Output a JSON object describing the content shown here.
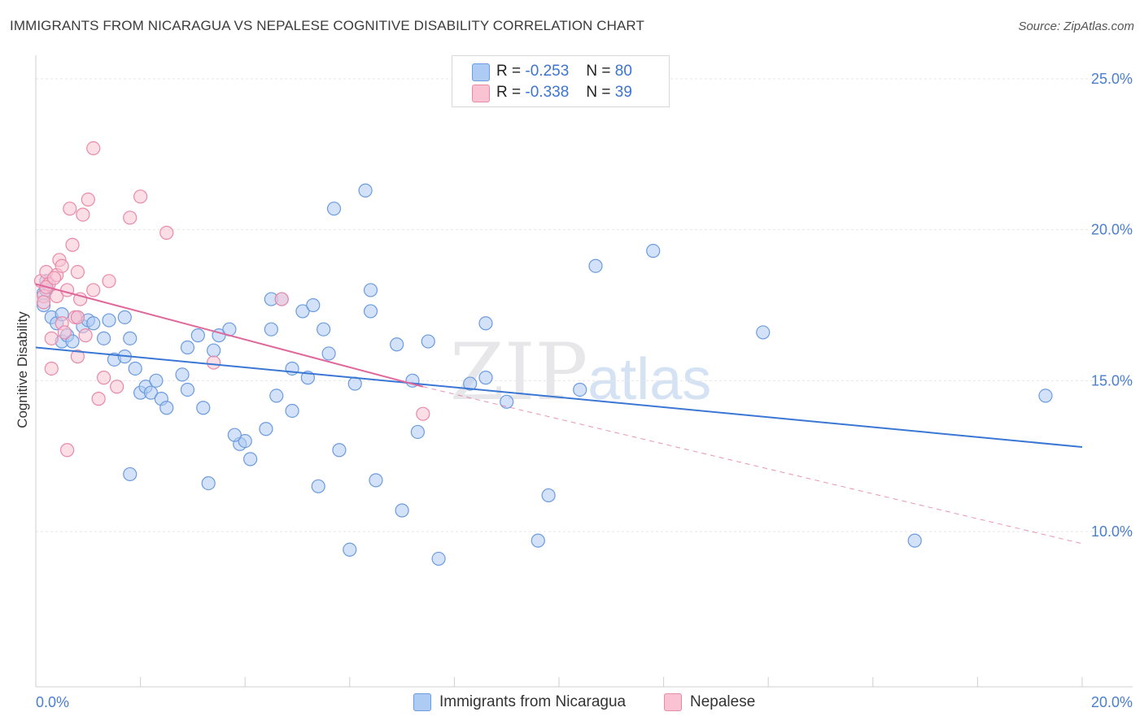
{
  "chart_data": {
    "type": "scatter",
    "title": "IMMIGRANTS FROM NICARAGUA VS NEPALESE COGNITIVE DISABILITY CORRELATION CHART",
    "source": "Source: ZipAtlas.com",
    "xlabel": "",
    "ylabel": "Cognitive Disability",
    "xlim": [
      0,
      20
    ],
    "ylim": [
      5,
      26
    ],
    "y_ticks": [
      {
        "value": 10,
        "label": "10.0%"
      },
      {
        "value": 15,
        "label": "15.0%"
      },
      {
        "value": 20,
        "label": "20.0%"
      },
      {
        "value": 25,
        "label": "25.0%"
      }
    ],
    "x_tick_labels": {
      "min": "0.0%",
      "max": "20.0%"
    },
    "watermark": {
      "main": "ZIP",
      "small": "atlas"
    },
    "legend": {
      "entries": [
        {
          "r_label": "R =",
          "r": "-0.253",
          "n_label": "N =",
          "n": "80",
          "color": "#aecbf3",
          "border": "#6b9be0"
        },
        {
          "r_label": "R =",
          "r": "-0.338",
          "n_label": "N =",
          "n": "39",
          "color": "#f9c3d4",
          "border": "#e98aa8"
        }
      ]
    },
    "series": [
      {
        "name": "Immigrants from Nicaragua",
        "color": "#aecbf3",
        "stroke": "#6b9be0",
        "trend": {
          "x0": 0,
          "y0": 16.1,
          "x1": 20,
          "y1": 12.8,
          "color": "#3a77d4"
        },
        "points": [
          [
            0.15,
            17.5
          ],
          [
            0.2,
            18.3
          ],
          [
            0.3,
            17.1
          ],
          [
            0.4,
            16.9
          ],
          [
            0.5,
            17.2
          ],
          [
            0.5,
            16.3
          ],
          [
            0.6,
            16.5
          ],
          [
            0.7,
            16.3
          ],
          [
            0.8,
            17.1
          ],
          [
            0.9,
            16.8
          ],
          [
            1.0,
            17.0
          ],
          [
            1.1,
            16.9
          ],
          [
            1.3,
            16.4
          ],
          [
            1.4,
            17.0
          ],
          [
            1.7,
            17.1
          ],
          [
            1.5,
            15.7
          ],
          [
            1.7,
            15.8
          ],
          [
            1.8,
            16.4
          ],
          [
            2.0,
            14.6
          ],
          [
            1.9,
            15.4
          ],
          [
            2.1,
            14.8
          ],
          [
            2.2,
            14.6
          ],
          [
            2.3,
            15.0
          ],
          [
            2.4,
            14.4
          ],
          [
            2.5,
            14.1
          ],
          [
            2.8,
            15.2
          ],
          [
            2.9,
            14.7
          ],
          [
            3.2,
            14.1
          ],
          [
            3.1,
            16.5
          ],
          [
            3.5,
            16.5
          ],
          [
            3.7,
            16.7
          ],
          [
            3.4,
            16.0
          ],
          [
            2.9,
            16.1
          ],
          [
            3.9,
            12.9
          ],
          [
            4.0,
            13.0
          ],
          [
            3.8,
            13.2
          ],
          [
            4.1,
            12.4
          ],
          [
            4.4,
            13.4
          ],
          [
            4.5,
            16.7
          ],
          [
            4.5,
            17.7
          ],
          [
            4.6,
            14.5
          ],
          [
            4.7,
            17.7
          ],
          [
            4.9,
            15.4
          ],
          [
            4.9,
            14.0
          ],
          [
            5.1,
            17.3
          ],
          [
            5.2,
            15.1
          ],
          [
            5.3,
            17.5
          ],
          [
            5.5,
            16.7
          ],
          [
            5.6,
            15.9
          ],
          [
            5.7,
            20.7
          ],
          [
            5.8,
            12.7
          ],
          [
            5.4,
            11.5
          ],
          [
            6.1,
            14.9
          ],
          [
            6.4,
            18.0
          ],
          [
            6.3,
            21.3
          ],
          [
            6.5,
            11.7
          ],
          [
            6.4,
            17.3
          ],
          [
            6.9,
            16.2
          ],
          [
            7.2,
            15.0
          ],
          [
            7.3,
            13.3
          ],
          [
            7.0,
            10.7
          ],
          [
            7.5,
            16.3
          ],
          [
            7.7,
            9.1
          ],
          [
            8.3,
            14.9
          ],
          [
            8.6,
            15.1
          ],
          [
            8.6,
            16.9
          ],
          [
            9.0,
            14.3
          ],
          [
            9.6,
            9.7
          ],
          [
            9.8,
            11.2
          ],
          [
            10.4,
            14.7
          ],
          [
            10.7,
            18.8
          ],
          [
            11.8,
            19.3
          ],
          [
            1.8,
            11.9
          ],
          [
            3.3,
            11.6
          ],
          [
            6.0,
            9.4
          ],
          [
            13.9,
            16.6
          ],
          [
            16.8,
            9.7
          ],
          [
            19.3,
            14.5
          ],
          [
            0.15,
            17.9
          ],
          [
            0.2,
            18.0
          ]
        ]
      },
      {
        "name": "Nepalese",
        "color": "#f9c3d4",
        "stroke": "#e98aa8",
        "trend": {
          "x0": 0,
          "y0": 18.2,
          "x1": 7.4,
          "y1": 14.8,
          "color": "#e0679a"
        },
        "trend_ext": {
          "x0": 7.4,
          "y0": 14.8,
          "x1": 20,
          "y1": 9.6
        },
        "points": [
          [
            0.1,
            18.3
          ],
          [
            0.15,
            17.8
          ],
          [
            0.2,
            18.6
          ],
          [
            0.25,
            18.2
          ],
          [
            0.3,
            16.4
          ],
          [
            0.3,
            15.4
          ],
          [
            0.4,
            18.5
          ],
          [
            0.4,
            17.8
          ],
          [
            0.45,
            19.0
          ],
          [
            0.5,
            18.8
          ],
          [
            0.5,
            16.9
          ],
          [
            0.6,
            18.0
          ],
          [
            0.6,
            12.7
          ],
          [
            0.65,
            20.7
          ],
          [
            0.7,
            19.5
          ],
          [
            0.75,
            17.1
          ],
          [
            0.8,
            18.6
          ],
          [
            0.8,
            15.8
          ],
          [
            0.85,
            17.7
          ],
          [
            0.9,
            20.5
          ],
          [
            0.95,
            16.5
          ],
          [
            1.0,
            21.0
          ],
          [
            1.1,
            22.7
          ],
          [
            1.1,
            18.0
          ],
          [
            1.2,
            14.4
          ],
          [
            1.3,
            15.1
          ],
          [
            1.4,
            18.3
          ],
          [
            1.55,
            14.8
          ],
          [
            1.8,
            20.4
          ],
          [
            2.0,
            21.1
          ],
          [
            2.5,
            19.9
          ],
          [
            3.4,
            15.6
          ],
          [
            4.7,
            17.7
          ],
          [
            7.4,
            13.9
          ],
          [
            0.15,
            17.6
          ],
          [
            0.2,
            18.1
          ],
          [
            0.35,
            18.4
          ],
          [
            0.55,
            16.6
          ],
          [
            0.8,
            17.1
          ]
        ]
      }
    ]
  },
  "bottom_legend": {
    "series1": "Immigrants from Nicaragua",
    "series2": "Nepalese"
  }
}
